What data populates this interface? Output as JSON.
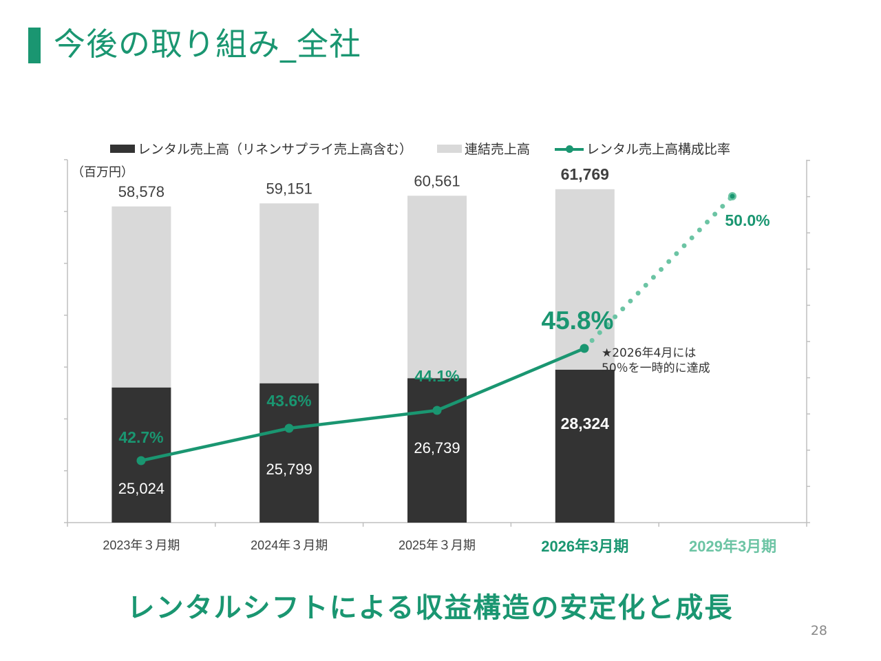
{
  "title": "今後の取り組み_全社",
  "legend": {
    "rental": "レンタル売上高（リネンサプライ売上高含む）",
    "consolidated": "連結売上高",
    "ratio": "レンタル売上高構成比率"
  },
  "unit": "（百万円）",
  "note": "★2026年4月には\n50％を一時的に達成",
  "bottom_message": "レンタルシフトによる収益構造の安定化と成長",
  "page_number": "28",
  "colors": {
    "green": "#1a9671",
    "green_light": "#6cc4a4",
    "dark": "#333333",
    "gray": "#d9d9d9"
  },
  "chart_data": {
    "type": "bar",
    "categories": [
      "2023年３月期",
      "2024年３月期",
      "2025年３月期",
      "2026年3月期",
      "2029年3月期"
    ],
    "series": [
      {
        "name": "連結売上高",
        "values": [
          58578,
          59151,
          60561,
          61769,
          null
        ],
        "labels": [
          "58,578",
          "59,151",
          "60,561",
          "61,769",
          ""
        ]
      },
      {
        "name": "レンタル売上高（リネンサプライ売上高含む）",
        "values": [
          25024,
          25799,
          26739,
          28324,
          null
        ],
        "labels": [
          "25,024",
          "25,799",
          "26,739",
          "28,324",
          ""
        ]
      },
      {
        "name": "レンタル売上高構成比率",
        "values": [
          42.7,
          43.6,
          44.1,
          45.8,
          50.0
        ],
        "labels": [
          "42.7%",
          "43.6%",
          "44.1%",
          "45.8%",
          "50.0%"
        ]
      }
    ],
    "ylim": [
      0,
      62000
    ],
    "y2lim": [
      37,
      51
    ],
    "forecast_from_index": 3
  }
}
